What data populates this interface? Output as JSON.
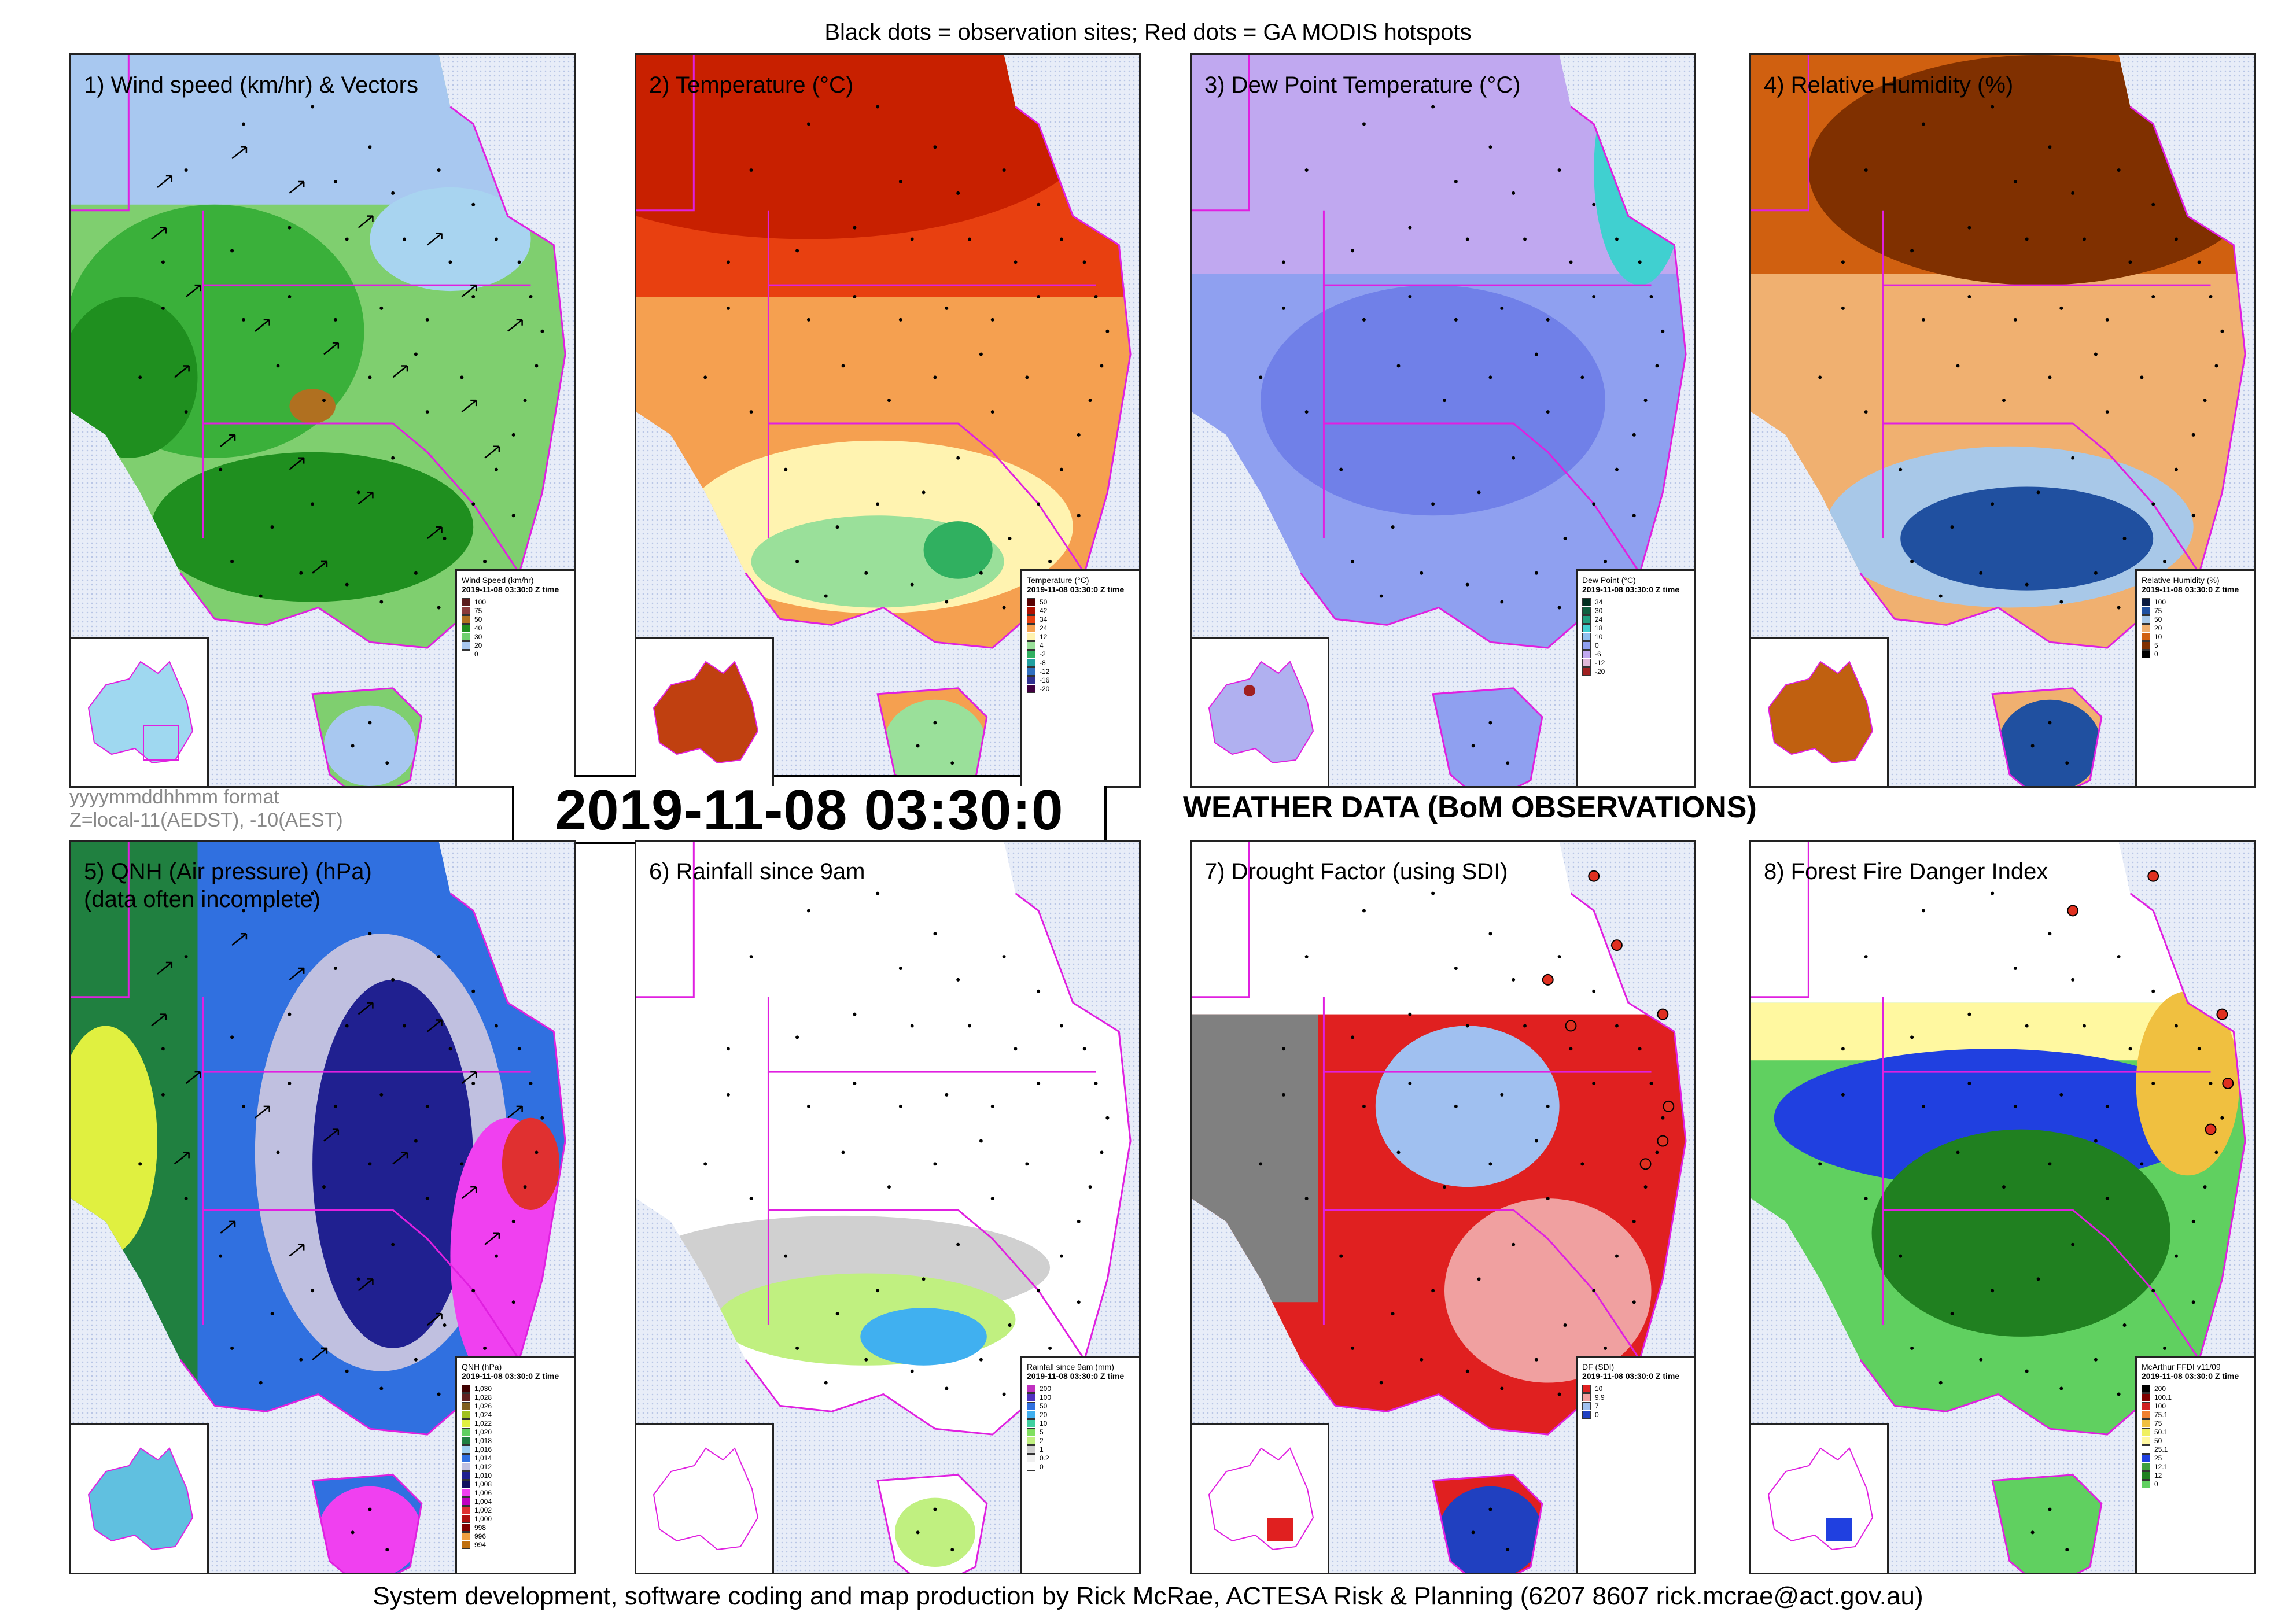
{
  "header": {
    "note": "Black dots = observation sites; Red dots = GA MODIS hotspots"
  },
  "footer": {
    "credit": "System development, software coding and map production by Rick McRae, ACTESA Risk & Planning (6207 8607 rick.mcrae@act.gov.au)"
  },
  "time_format": {
    "line1": "yyyymmddhhmm format",
    "line2": "Z=local-11(AEDST), -10(AEST)"
  },
  "datetime": "2019-11-08 03:30:0",
  "main_title": "WEATHER DATA (BoM OBSERVATIONS)",
  "panels": [
    {
      "title": "1) Wind speed (km/hr) & Vectors",
      "legend": {
        "title": "Wind Speed (km/hr)",
        "subtitle": "2019-11-08 03:30:0 Z time",
        "items": [
          {
            "label": "100",
            "color": "#5a1a1a"
          },
          {
            "label": "75",
            "color": "#8b3a3a"
          },
          {
            "label": "50",
            "color": "#b07020"
          },
          {
            "label": "40",
            "color": "#1f8f1f"
          },
          {
            "label": "30",
            "color": "#6fd06f"
          },
          {
            "label": "20",
            "color": "#a9c8f0"
          },
          {
            "label": "0",
            "color": "#ffffff"
          }
        ]
      }
    },
    {
      "title": "2) Temperature (°C)",
      "legend": {
        "title": "Temperature (°C)",
        "subtitle": "2019-11-08 03:30:0 Z time",
        "items": [
          {
            "label": "50",
            "color": "#5a0000"
          },
          {
            "label": "42",
            "color": "#b01000"
          },
          {
            "label": "34",
            "color": "#e84010"
          },
          {
            "label": "24",
            "color": "#f5a050"
          },
          {
            "label": "12",
            "color": "#fff3b0"
          },
          {
            "label": "4",
            "color": "#9ae09a"
          },
          {
            "label": "-2",
            "color": "#30b060"
          },
          {
            "label": "-8",
            "color": "#20a0a0"
          },
          {
            "label": "-12",
            "color": "#3070c0"
          },
          {
            "label": "-16",
            "color": "#303090"
          },
          {
            "label": "-20",
            "color": "#400040"
          }
        ]
      }
    },
    {
      "title": "3) Dew Point Temperature (°C)",
      "legend": {
        "title": "Dew Point (°C)",
        "subtitle": "2019-11-08 03:30:0 Z time",
        "items": [
          {
            "label": "34",
            "color": "#003020"
          },
          {
            "label": "30",
            "color": "#106040"
          },
          {
            "label": "24",
            "color": "#20a080"
          },
          {
            "label": "18",
            "color": "#40d0d0"
          },
          {
            "label": "10",
            "color": "#90c0f0"
          },
          {
            "label": "0",
            "color": "#8fa0f0"
          },
          {
            "label": "-6",
            "color": "#c0a8f0"
          },
          {
            "label": "-12",
            "color": "#e0b8d8"
          },
          {
            "label": "-20",
            "color": "#a02020"
          }
        ]
      }
    },
    {
      "title": "4) Relative Humidity (%)",
      "legend": {
        "title": "Relative Humidity (%)",
        "subtitle": "2019-11-08 03:30:0 Z time",
        "items": [
          {
            "label": "100",
            "color": "#0a1a40"
          },
          {
            "label": "75",
            "color": "#2050a0"
          },
          {
            "label": "50",
            "color": "#a8c8e8"
          },
          {
            "label": "20",
            "color": "#f0b070"
          },
          {
            "label": "10",
            "color": "#d06010"
          },
          {
            "label": "5",
            "color": "#803000"
          },
          {
            "label": "0",
            "color": "#000000"
          }
        ]
      }
    },
    {
      "title": "5) QNH (Air pressure) (hPa)\n(data often incomplete)",
      "legend": {
        "title": "QNH (hPa)",
        "subtitle": "2019-11-08 03:30:0 Z time",
        "items": [
          {
            "label": "1,030",
            "color": "#400000"
          },
          {
            "label": "1,028",
            "color": "#602020"
          },
          {
            "label": "1,026",
            "color": "#806020"
          },
          {
            "label": "1,024",
            "color": "#a0c020"
          },
          {
            "label": "1,022",
            "color": "#e0f040"
          },
          {
            "label": "1,020",
            "color": "#60d060"
          },
          {
            "label": "1,018",
            "color": "#208040"
          },
          {
            "label": "1,016",
            "color": "#a0d0f0"
          },
          {
            "label": "1,014",
            "color": "#3070e0"
          },
          {
            "label": "1,012",
            "color": "#c0c0e0"
          },
          {
            "label": "1,010",
            "color": "#202090"
          },
          {
            "label": "1,008",
            "color": "#101060"
          },
          {
            "label": "1,006",
            "color": "#f040f0"
          },
          {
            "label": "1,004",
            "color": "#c000c0"
          },
          {
            "label": "1,002",
            "color": "#e03030"
          },
          {
            "label": "1,000",
            "color": "#b01010"
          },
          {
            "label": "998",
            "color": "#800000"
          },
          {
            "label": "996",
            "color": "#f0a040"
          },
          {
            "label": "994",
            "color": "#c07010"
          }
        ]
      }
    },
    {
      "title": "6) Rainfall since 9am",
      "legend": {
        "title": "Rainfall since 9am (mm)",
        "subtitle": "2019-11-08 03:30:0 Z time",
        "items": [
          {
            "label": "200",
            "color": "#c030c0"
          },
          {
            "label": "100",
            "color": "#5030c0"
          },
          {
            "label": "50",
            "color": "#3070e0"
          },
          {
            "label": "20",
            "color": "#40b0f0"
          },
          {
            "label": "10",
            "color": "#40d0a0"
          },
          {
            "label": "5",
            "color": "#80e060"
          },
          {
            "label": "2",
            "color": "#c0f080"
          },
          {
            "label": "1",
            "color": "#d0d0d0"
          },
          {
            "label": "0.2",
            "color": "#f0f0f0"
          },
          {
            "label": "0",
            "color": "#ffffff"
          }
        ]
      }
    },
    {
      "title": "7) Drought Factor (using SDI)",
      "legend": {
        "title": "DF (SDI)",
        "subtitle": "2019-11-08 03:30:0 Z time",
        "items": [
          {
            "label": "10",
            "color": "#e02020"
          },
          {
            "label": "9.9",
            "color": "#f0a0a0"
          },
          {
            "label": "7",
            "color": "#a0c0f0"
          },
          {
            "label": "0",
            "color": "#2040c0"
          }
        ]
      }
    },
    {
      "title": "8) Forest Fire Danger Index",
      "legend": {
        "title": "McArthur FFDI v11/09",
        "subtitle": "2019-11-08 03:30:0 Z time",
        "items": [
          {
            "label": "200",
            "color": "#000000"
          },
          {
            "label": "100.1",
            "color": "#800000"
          },
          {
            "label": "100",
            "color": "#d02020"
          },
          {
            "label": "75.1",
            "color": "#f08030"
          },
          {
            "label": "75",
            "color": "#f0c040"
          },
          {
            "label": "50.1",
            "color": "#f0f060"
          },
          {
            "label": "50",
            "color": "#fff8a0"
          },
          {
            "label": "25.1",
            "color": "#ffffff"
          },
          {
            "label": "25",
            "color": "#2040e0"
          },
          {
            "label": "12.1",
            "color": "#40a040"
          },
          {
            "label": "12",
            "color": "#208020"
          },
          {
            "label": "0",
            "color": "#60d060"
          }
        ]
      }
    }
  ]
}
